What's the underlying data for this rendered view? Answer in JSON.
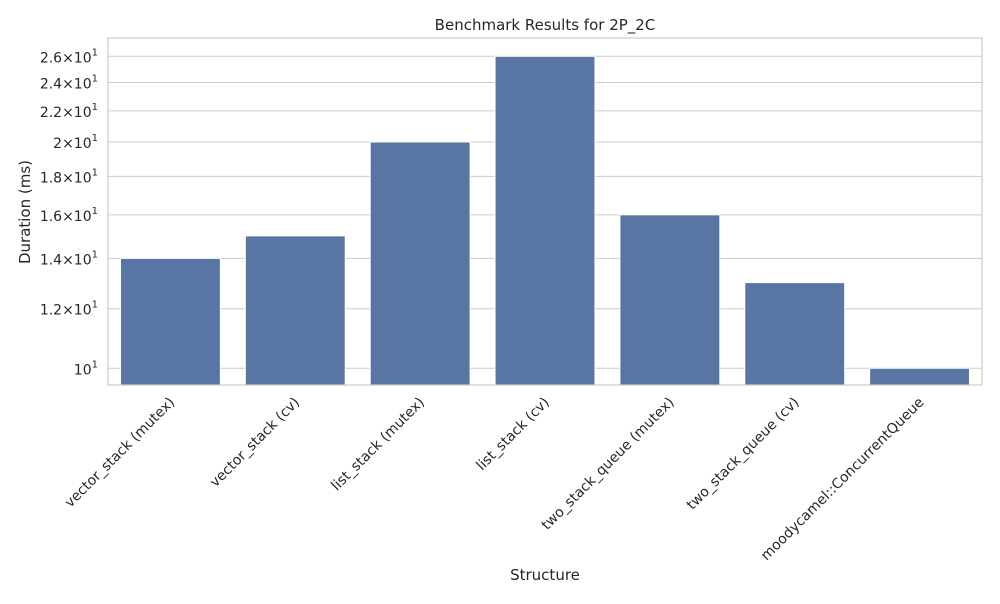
{
  "chart_data": {
    "type": "bar",
    "title": "Benchmark Results for 2P_2C",
    "xlabel": "Structure",
    "ylabel": "Duration (ms)",
    "yscale": "log",
    "ylim": [
      9.5,
      27.5
    ],
    "grid": "horizontal",
    "categories": [
      "vector_stack (mutex)",
      "vector_stack (cv)",
      "list_stack (mutex)",
      "list_stack (cv)",
      "two_stack_queue (mutex)",
      "two_stack_queue (cv)",
      "moodycamel::ConcurrentQueue"
    ],
    "values": [
      14.0,
      15.0,
      20.0,
      26.0,
      16.0,
      13.0,
      10.0
    ],
    "bar_color": "#5875a4",
    "yticks": [
      {
        "value": 10,
        "mantissa": "",
        "exponent": "1"
      },
      {
        "value": 12,
        "mantissa": "1.2",
        "exponent": "1"
      },
      {
        "value": 14,
        "mantissa": "1.4",
        "exponent": "1"
      },
      {
        "value": 16,
        "mantissa": "1.6",
        "exponent": "1"
      },
      {
        "value": 18,
        "mantissa": "1.8",
        "exponent": "1"
      },
      {
        "value": 20,
        "mantissa": "2",
        "exponent": "1"
      },
      {
        "value": 22,
        "mantissa": "2.2",
        "exponent": "1"
      },
      {
        "value": 24,
        "mantissa": "2.4",
        "exponent": "1"
      },
      {
        "value": 26,
        "mantissa": "2.6",
        "exponent": "1"
      }
    ]
  }
}
